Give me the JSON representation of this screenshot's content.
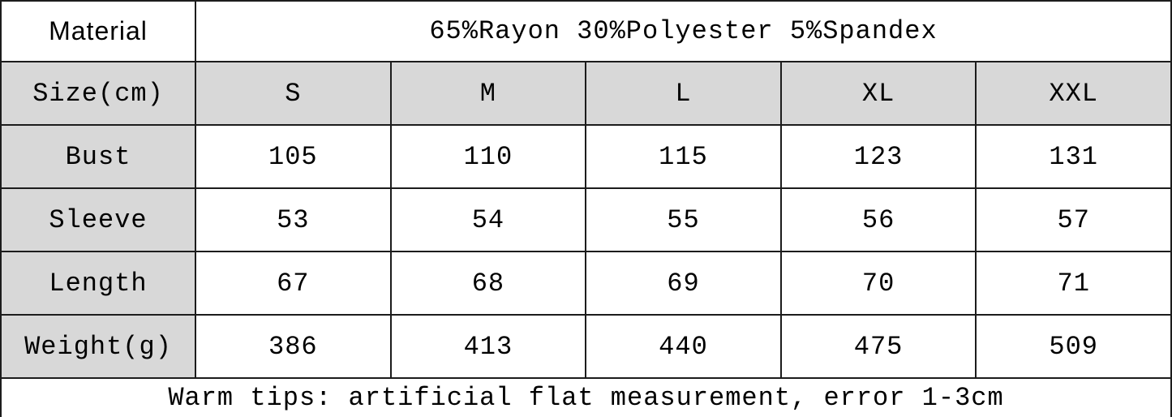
{
  "chart_data": {
    "type": "table",
    "material": {
      "label": "Material",
      "value": "65%Rayon 30%Polyester 5%Spandex"
    },
    "size_header": "Size(cm)",
    "columns": [
      "S",
      "M",
      "L",
      "XL",
      "XXL"
    ],
    "rows": [
      {
        "label": "Bust",
        "values": [
          105,
          110,
          115,
          123,
          131
        ]
      },
      {
        "label": "Sleeve",
        "values": [
          53,
          54,
          55,
          56,
          57
        ]
      },
      {
        "label": "Length",
        "values": [
          67,
          68,
          69,
          70,
          71
        ]
      },
      {
        "label": "Weight(g)",
        "values": [
          386,
          413,
          440,
          475,
          509
        ]
      }
    ],
    "footer_note": "Warm tips: artificial flat measurement, error 1-3cm",
    "layout": {
      "grid": "on",
      "header_row_shaded": true,
      "label_column_shaded": true
    }
  },
  "colors": {
    "header_fill": "#d8d8d8",
    "border": "#1c1c1c",
    "text": "#000000",
    "background": "#ffffff"
  }
}
